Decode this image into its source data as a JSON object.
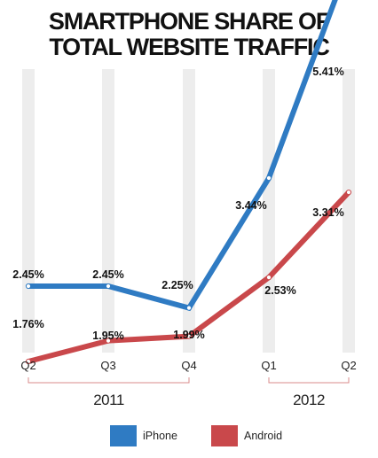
{
  "chart_data": {
    "type": "line",
    "title": "SMARTPHONE SHARE OF TOTAL WEBSITE TRAFFIC",
    "title_lines": [
      "SMARTPHONE SHARE OF",
      "TOTAL WEBSITE TRAFFIC"
    ],
    "unit": "%",
    "x": [
      "Q2",
      "Q3",
      "Q4",
      "Q1",
      "Q2"
    ],
    "year_groups": [
      {
        "label": "2011",
        "quarters": [
          "Q2",
          "Q3",
          "Q4"
        ]
      },
      {
        "label": "2012",
        "quarters": [
          "Q1",
          "Q2"
        ]
      }
    ],
    "series": [
      {
        "name": "iPhone",
        "color": "#2f7bc3",
        "values": [
          2.45,
          2.45,
          2.25,
          3.44,
          5.41
        ],
        "labels": [
          "2.45%",
          "2.45%",
          "2.25%",
          "3.44%",
          "5.41%"
        ]
      },
      {
        "name": "Android",
        "color": "#c9484b",
        "values": [
          1.76,
          1.95,
          1.99,
          2.53,
          3.31
        ],
        "labels": [
          "1.76%",
          "1.95%",
          "1.99%",
          "2.53%",
          "3.31%"
        ]
      }
    ],
    "grid": "vertical bands",
    "legend_position": "bottom"
  }
}
